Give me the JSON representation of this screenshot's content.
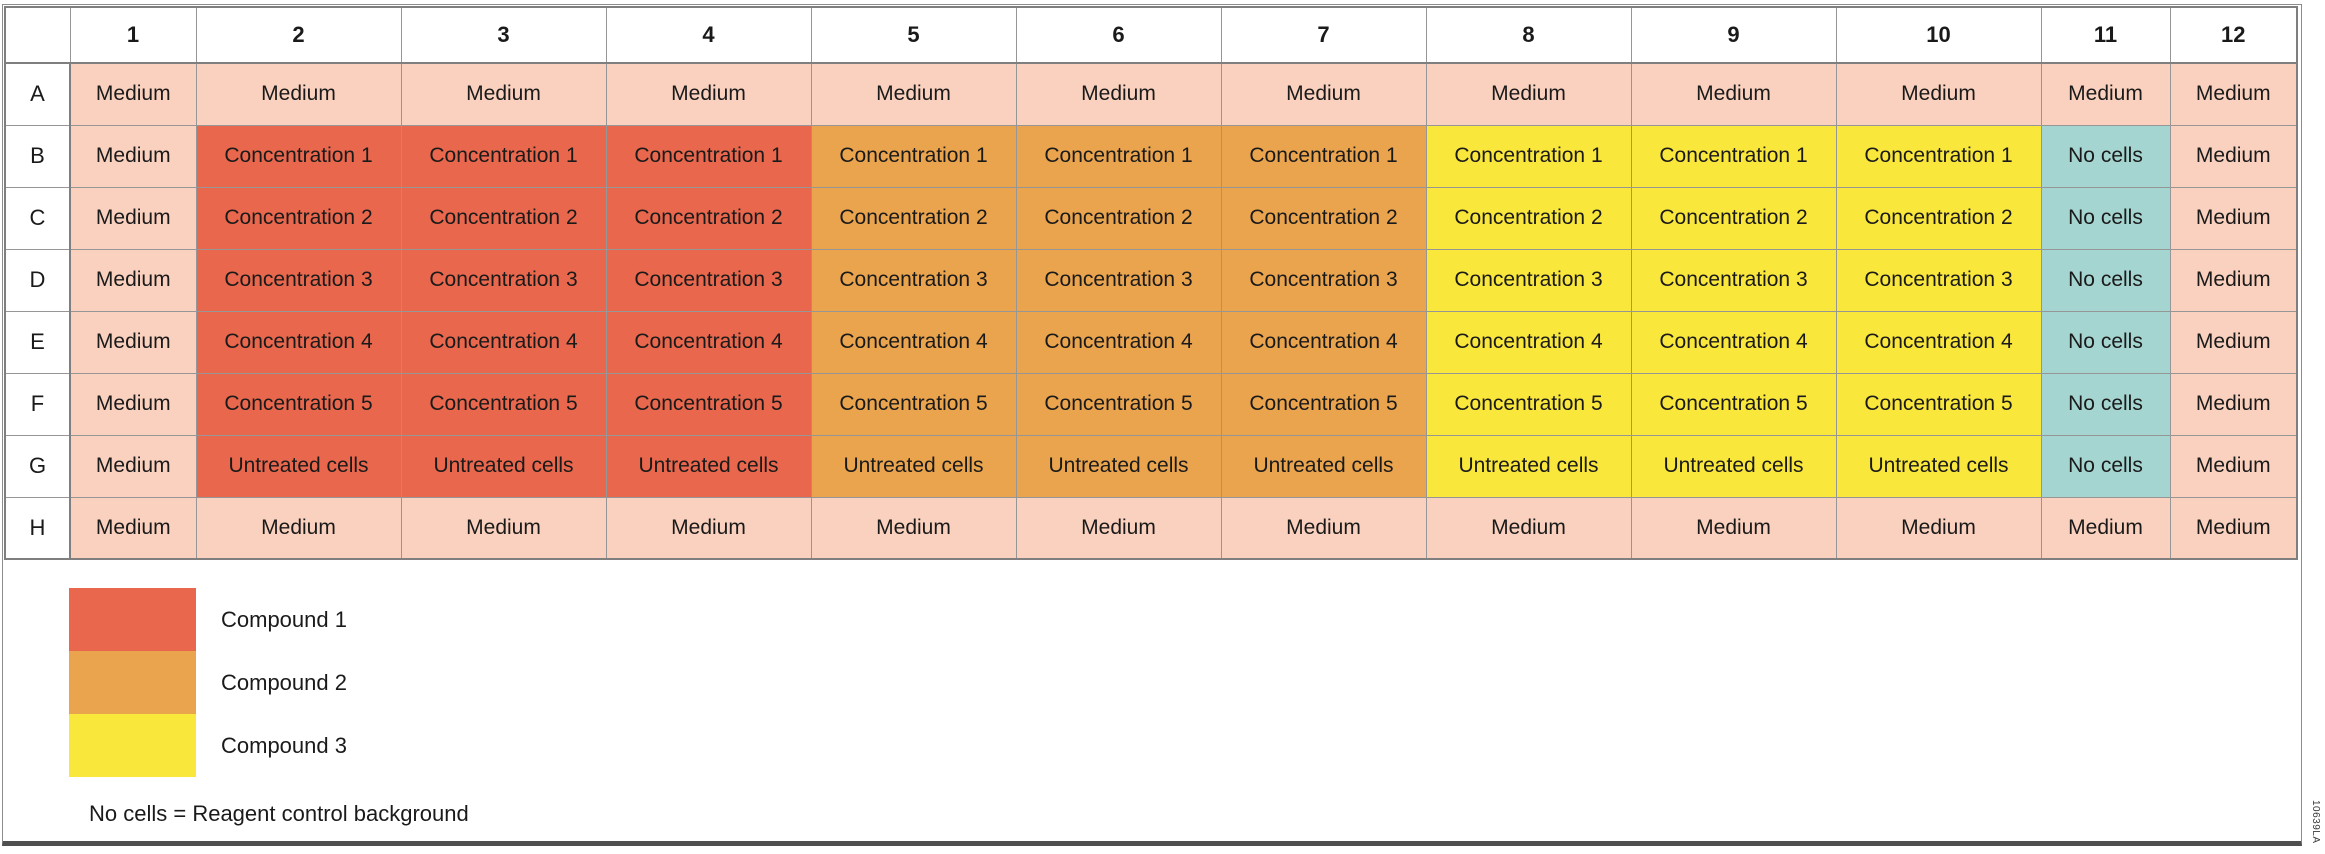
{
  "colors": {
    "medium": "#FAD1BE",
    "compound1": "#E8674D",
    "compound2": "#EAA44E",
    "compound3": "#FAE73C",
    "nocells": "#A5D5D1"
  },
  "plate": {
    "columns": [
      "1",
      "2",
      "3",
      "4",
      "5",
      "6",
      "7",
      "8",
      "9",
      "10",
      "11",
      "12"
    ],
    "rows": [
      {
        "label": "A",
        "cells": [
          {
            "t": "Medium",
            "c": "medium"
          },
          {
            "t": "Medium",
            "c": "medium"
          },
          {
            "t": "Medium",
            "c": "medium"
          },
          {
            "t": "Medium",
            "c": "medium"
          },
          {
            "t": "Medium",
            "c": "medium"
          },
          {
            "t": "Medium",
            "c": "medium"
          },
          {
            "t": "Medium",
            "c": "medium"
          },
          {
            "t": "Medium",
            "c": "medium"
          },
          {
            "t": "Medium",
            "c": "medium"
          },
          {
            "t": "Medium",
            "c": "medium"
          },
          {
            "t": "Medium",
            "c": "medium"
          },
          {
            "t": "Medium",
            "c": "medium"
          }
        ]
      },
      {
        "label": "B",
        "cells": [
          {
            "t": "Medium",
            "c": "medium"
          },
          {
            "t": "Concentration 1",
            "c": "compound1"
          },
          {
            "t": "Concentration 1",
            "c": "compound1"
          },
          {
            "t": "Concentration 1",
            "c": "compound1"
          },
          {
            "t": "Concentration 1",
            "c": "compound2"
          },
          {
            "t": "Concentration 1",
            "c": "compound2"
          },
          {
            "t": "Concentration 1",
            "c": "compound2"
          },
          {
            "t": "Concentration 1",
            "c": "compound3"
          },
          {
            "t": "Concentration 1",
            "c": "compound3"
          },
          {
            "t": "Concentration 1",
            "c": "compound3"
          },
          {
            "t": "No cells",
            "c": "nocells"
          },
          {
            "t": "Medium",
            "c": "medium"
          }
        ]
      },
      {
        "label": "C",
        "cells": [
          {
            "t": "Medium",
            "c": "medium"
          },
          {
            "t": "Concentration 2",
            "c": "compound1"
          },
          {
            "t": "Concentration 2",
            "c": "compound1"
          },
          {
            "t": "Concentration 2",
            "c": "compound1"
          },
          {
            "t": "Concentration 2",
            "c": "compound2"
          },
          {
            "t": "Concentration 2",
            "c": "compound2"
          },
          {
            "t": "Concentration 2",
            "c": "compound2"
          },
          {
            "t": "Concentration 2",
            "c": "compound3"
          },
          {
            "t": "Concentration 2",
            "c": "compound3"
          },
          {
            "t": "Concentration 2",
            "c": "compound3"
          },
          {
            "t": "No cells",
            "c": "nocells"
          },
          {
            "t": "Medium",
            "c": "medium"
          }
        ]
      },
      {
        "label": "D",
        "cells": [
          {
            "t": "Medium",
            "c": "medium"
          },
          {
            "t": "Concentration 3",
            "c": "compound1"
          },
          {
            "t": "Concentration 3",
            "c": "compound1"
          },
          {
            "t": "Concentration 3",
            "c": "compound1"
          },
          {
            "t": "Concentration 3",
            "c": "compound2"
          },
          {
            "t": "Concentration 3",
            "c": "compound2"
          },
          {
            "t": "Concentration 3",
            "c": "compound2"
          },
          {
            "t": "Concentration 3",
            "c": "compound3"
          },
          {
            "t": "Concentration 3",
            "c": "compound3"
          },
          {
            "t": "Concentration 3",
            "c": "compound3"
          },
          {
            "t": "No cells",
            "c": "nocells"
          },
          {
            "t": "Medium",
            "c": "medium"
          }
        ]
      },
      {
        "label": "E",
        "cells": [
          {
            "t": "Medium",
            "c": "medium"
          },
          {
            "t": "Concentration 4",
            "c": "compound1"
          },
          {
            "t": "Concentration 4",
            "c": "compound1"
          },
          {
            "t": "Concentration 4",
            "c": "compound1"
          },
          {
            "t": "Concentration 4",
            "c": "compound2"
          },
          {
            "t": "Concentration 4",
            "c": "compound2"
          },
          {
            "t": "Concentration 4",
            "c": "compound2"
          },
          {
            "t": "Concentration 4",
            "c": "compound3"
          },
          {
            "t": "Concentration 4",
            "c": "compound3"
          },
          {
            "t": "Concentration 4",
            "c": "compound3"
          },
          {
            "t": "No cells",
            "c": "nocells"
          },
          {
            "t": "Medium",
            "c": "medium"
          }
        ]
      },
      {
        "label": "F",
        "cells": [
          {
            "t": "Medium",
            "c": "medium"
          },
          {
            "t": "Concentration 5",
            "c": "compound1"
          },
          {
            "t": "Concentration 5",
            "c": "compound1"
          },
          {
            "t": "Concentration 5",
            "c": "compound1"
          },
          {
            "t": "Concentration 5",
            "c": "compound2"
          },
          {
            "t": "Concentration 5",
            "c": "compound2"
          },
          {
            "t": "Concentration 5",
            "c": "compound2"
          },
          {
            "t": "Concentration 5",
            "c": "compound3"
          },
          {
            "t": "Concentration 5",
            "c": "compound3"
          },
          {
            "t": "Concentration 5",
            "c": "compound3"
          },
          {
            "t": "No cells",
            "c": "nocells"
          },
          {
            "t": "Medium",
            "c": "medium"
          }
        ]
      },
      {
        "label": "G",
        "cells": [
          {
            "t": "Medium",
            "c": "medium"
          },
          {
            "t": "Untreated cells",
            "c": "compound1"
          },
          {
            "t": "Untreated cells",
            "c": "compound1"
          },
          {
            "t": "Untreated cells",
            "c": "compound1"
          },
          {
            "t": "Untreated cells",
            "c": "compound2"
          },
          {
            "t": "Untreated cells",
            "c": "compound2"
          },
          {
            "t": "Untreated cells",
            "c": "compound2"
          },
          {
            "t": "Untreated cells",
            "c": "compound3"
          },
          {
            "t": "Untreated cells",
            "c": "compound3"
          },
          {
            "t": "Untreated cells",
            "c": "compound3"
          },
          {
            "t": "No cells",
            "c": "nocells"
          },
          {
            "t": "Medium",
            "c": "medium"
          }
        ]
      },
      {
        "label": "H",
        "cells": [
          {
            "t": "Medium",
            "c": "medium"
          },
          {
            "t": "Medium",
            "c": "medium"
          },
          {
            "t": "Medium",
            "c": "medium"
          },
          {
            "t": "Medium",
            "c": "medium"
          },
          {
            "t": "Medium",
            "c": "medium"
          },
          {
            "t": "Medium",
            "c": "medium"
          },
          {
            "t": "Medium",
            "c": "medium"
          },
          {
            "t": "Medium",
            "c": "medium"
          },
          {
            "t": "Medium",
            "c": "medium"
          },
          {
            "t": "Medium",
            "c": "medium"
          },
          {
            "t": "Medium",
            "c": "medium"
          },
          {
            "t": "Medium",
            "c": "medium"
          }
        ]
      }
    ]
  },
  "legend": {
    "items": [
      {
        "label": "Compound 1",
        "c": "compound1"
      },
      {
        "label": "Compound 2",
        "c": "compound2"
      },
      {
        "label": "Compound 3",
        "c": "compound3"
      }
    ],
    "note": "No cells = Reagent control background"
  },
  "figure_code": "10639LA"
}
